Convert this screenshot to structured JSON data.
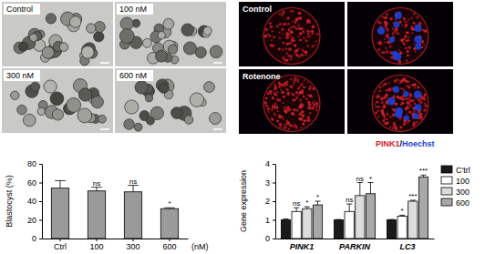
{
  "images": {
    "brightfield": {
      "labels": [
        "Control",
        "100 nM",
        "300 nM",
        "600 nM"
      ]
    },
    "fluorescence": {
      "labels": [
        "Control",
        "Rotenone"
      ],
      "stain_legend": [
        {
          "text": "PINK1",
          "color": "#d0202a"
        },
        {
          "text": "Hoechst",
          "color": "#1f3fd6"
        }
      ],
      "separator": "/"
    }
  },
  "chart_data": [
    {
      "type": "bar",
      "ylabel": "Blastocyst (%)",
      "xlabel": "(nM)",
      "categories": [
        "Ctrl",
        "100",
        "300",
        "600"
      ],
      "values": [
        54,
        51,
        50,
        32
      ],
      "errors": [
        8,
        4,
        7,
        1
      ],
      "annotations": [
        null,
        "ns",
        "ns",
        "*"
      ],
      "color": "#9a9a9a",
      "ylim": [
        0,
        80
      ],
      "yticks": [
        0,
        20,
        40,
        60,
        80
      ]
    },
    {
      "type": "bar",
      "ylabel": "Gene expression",
      "categories": [
        "PINK1",
        "PARKIN",
        "LC3"
      ],
      "series": [
        {
          "name": "C'trl",
          "color": "#1a1a1a",
          "values": [
            1,
            1,
            1
          ],
          "errors": [
            0.05,
            0.02,
            0.02
          ]
        },
        {
          "name": "100",
          "color": "#ffffff",
          "values": [
            1.45,
            1.45,
            1.2
          ],
          "errors": [
            0.2,
            0.4,
            0.05
          ],
          "annotations": [
            "ns",
            "ns",
            "*"
          ]
        },
        {
          "name": "300",
          "color": "#dcdcdc",
          "values": [
            1.6,
            2.3,
            2.0
          ],
          "errors": [
            0.1,
            0.7,
            0.05
          ],
          "annotations": [
            "*",
            "ns",
            "***"
          ]
        },
        {
          "name": "600",
          "color": "#a8a8a8",
          "values": [
            1.8,
            2.4,
            3.3
          ],
          "errors": [
            0.2,
            0.6,
            0.1
          ],
          "annotations": [
            "*",
            "*",
            "***"
          ]
        }
      ],
      "legend": "right",
      "ylim": [
        0,
        4
      ],
      "yticks": [
        0,
        1,
        2,
        3,
        4
      ]
    }
  ]
}
